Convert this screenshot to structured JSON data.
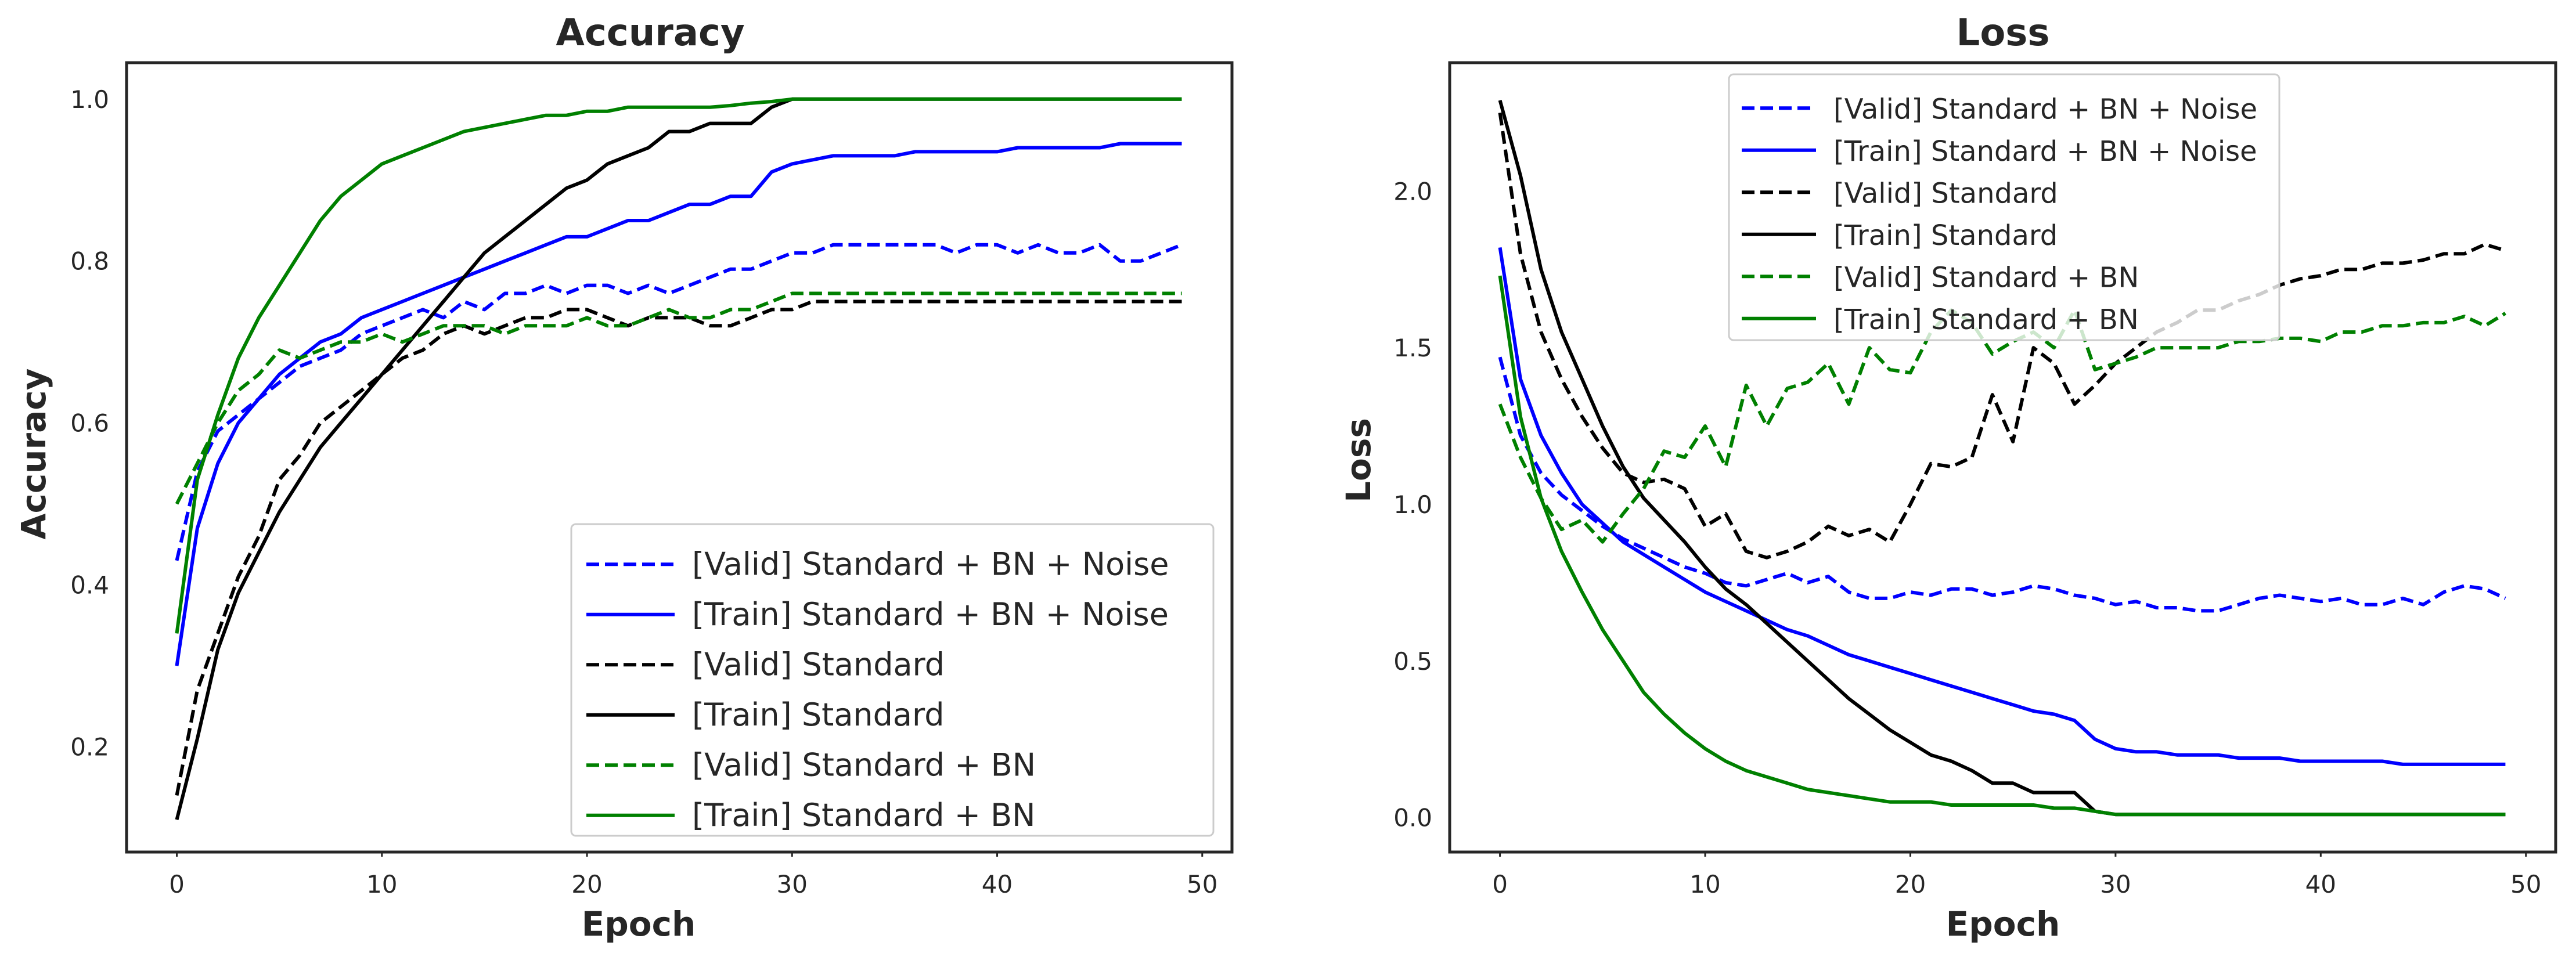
{
  "chart_data": [
    {
      "type": "line",
      "title": "Accuracy",
      "xlabel": "Epoch",
      "ylabel": "Accuracy",
      "xlim": [
        -2.45,
        51.45
      ],
      "ylim": [
        0.07,
        1.045
      ],
      "xticks": [
        0,
        10,
        20,
        30,
        40,
        50
      ],
      "yticks": [
        0.2,
        0.4,
        0.6,
        0.8,
        1.0
      ],
      "grid": false,
      "legend_position": "lower-right",
      "x": [
        0,
        1,
        2,
        3,
        4,
        5,
        6,
        7,
        8,
        9,
        10,
        11,
        12,
        13,
        14,
        15,
        16,
        17,
        18,
        19,
        20,
        21,
        22,
        23,
        24,
        25,
        26,
        27,
        28,
        29,
        30,
        31,
        32,
        33,
        34,
        35,
        36,
        37,
        38,
        39,
        40,
        41,
        42,
        43,
        44,
        45,
        46,
        47,
        48,
        49
      ],
      "series": [
        {
          "name": "[Valid] Standard + BN + Noise",
          "color": "#0000ff",
          "dash": "dashed",
          "values": [
            0.43,
            0.54,
            0.59,
            0.61,
            0.63,
            0.65,
            0.67,
            0.68,
            0.69,
            0.71,
            0.72,
            0.73,
            0.74,
            0.73,
            0.75,
            0.74,
            0.76,
            0.76,
            0.77,
            0.76,
            0.77,
            0.77,
            0.76,
            0.77,
            0.76,
            0.77,
            0.78,
            0.79,
            0.79,
            0.8,
            0.81,
            0.81,
            0.82,
            0.82,
            0.82,
            0.82,
            0.82,
            0.82,
            0.81,
            0.82,
            0.82,
            0.81,
            0.82,
            0.81,
            0.81,
            0.82,
            0.8,
            0.8,
            0.81,
            0.82
          ]
        },
        {
          "name": "[Train] Standard + BN + Noise",
          "color": "#0000ff",
          "dash": "solid",
          "values": [
            0.3,
            0.47,
            0.55,
            0.6,
            0.63,
            0.66,
            0.68,
            0.7,
            0.71,
            0.73,
            0.74,
            0.75,
            0.76,
            0.77,
            0.78,
            0.79,
            0.8,
            0.81,
            0.82,
            0.83,
            0.83,
            0.84,
            0.85,
            0.85,
            0.86,
            0.87,
            0.87,
            0.88,
            0.88,
            0.91,
            0.92,
            0.925,
            0.93,
            0.93,
            0.93,
            0.93,
            0.935,
            0.935,
            0.935,
            0.935,
            0.935,
            0.94,
            0.94,
            0.94,
            0.94,
            0.94,
            0.945,
            0.945,
            0.945,
            0.945
          ]
        },
        {
          "name": "[Valid] Standard",
          "color": "#000000",
          "dash": "dashed",
          "values": [
            0.14,
            0.27,
            0.34,
            0.41,
            0.46,
            0.53,
            0.56,
            0.6,
            0.62,
            0.64,
            0.66,
            0.68,
            0.69,
            0.71,
            0.72,
            0.71,
            0.72,
            0.73,
            0.73,
            0.74,
            0.74,
            0.73,
            0.72,
            0.73,
            0.73,
            0.73,
            0.72,
            0.72,
            0.73,
            0.74,
            0.74,
            0.75,
            0.75,
            0.75,
            0.75,
            0.75,
            0.75,
            0.75,
            0.75,
            0.75,
            0.75,
            0.75,
            0.75,
            0.75,
            0.75,
            0.75,
            0.75,
            0.75,
            0.75,
            0.75
          ]
        },
        {
          "name": "[Train] Standard",
          "color": "#000000",
          "dash": "solid",
          "values": [
            0.11,
            0.21,
            0.32,
            0.39,
            0.44,
            0.49,
            0.53,
            0.57,
            0.6,
            0.63,
            0.66,
            0.69,
            0.72,
            0.75,
            0.78,
            0.81,
            0.83,
            0.85,
            0.87,
            0.89,
            0.9,
            0.92,
            0.93,
            0.94,
            0.96,
            0.96,
            0.97,
            0.97,
            0.97,
            0.99,
            1.0,
            1.0,
            1.0,
            1.0,
            1.0,
            1.0,
            1.0,
            1.0,
            1.0,
            1.0,
            1.0,
            1.0,
            1.0,
            1.0,
            1.0,
            1.0,
            1.0,
            1.0,
            1.0,
            1.0
          ]
        },
        {
          "name": "[Valid] Standard + BN",
          "color": "#008000",
          "dash": "dashed",
          "values": [
            0.5,
            0.55,
            0.6,
            0.64,
            0.66,
            0.69,
            0.68,
            0.69,
            0.7,
            0.7,
            0.71,
            0.7,
            0.71,
            0.72,
            0.72,
            0.72,
            0.71,
            0.72,
            0.72,
            0.72,
            0.73,
            0.72,
            0.72,
            0.73,
            0.74,
            0.73,
            0.73,
            0.74,
            0.74,
            0.75,
            0.76,
            0.76,
            0.76,
            0.76,
            0.76,
            0.76,
            0.76,
            0.76,
            0.76,
            0.76,
            0.76,
            0.76,
            0.76,
            0.76,
            0.76,
            0.76,
            0.76,
            0.76,
            0.76,
            0.76
          ]
        },
        {
          "name": "[Train] Standard + BN",
          "color": "#008000",
          "dash": "solid",
          "values": [
            0.34,
            0.53,
            0.61,
            0.68,
            0.73,
            0.77,
            0.81,
            0.85,
            0.88,
            0.9,
            0.92,
            0.93,
            0.94,
            0.95,
            0.96,
            0.965,
            0.97,
            0.975,
            0.98,
            0.98,
            0.985,
            0.985,
            0.99,
            0.99,
            0.99,
            0.99,
            0.99,
            0.992,
            0.995,
            0.997,
            1.0,
            1.0,
            1.0,
            1.0,
            1.0,
            1.0,
            1.0,
            1.0,
            1.0,
            1.0,
            1.0,
            1.0,
            1.0,
            1.0,
            1.0,
            1.0,
            1.0,
            1.0,
            1.0,
            1.0
          ]
        }
      ]
    },
    {
      "type": "line",
      "title": "Loss",
      "xlabel": "Epoch",
      "ylabel": "Loss",
      "xlim": [
        -2.45,
        51.45
      ],
      "ylim": [
        -0.11,
        2.41
      ],
      "xticks": [
        0,
        10,
        20,
        30,
        40,
        50
      ],
      "yticks": [
        0.0,
        0.5,
        1.0,
        1.5,
        2.0
      ],
      "grid": false,
      "legend_position": "upper-center",
      "x": [
        0,
        1,
        2,
        3,
        4,
        5,
        6,
        7,
        8,
        9,
        10,
        11,
        12,
        13,
        14,
        15,
        16,
        17,
        18,
        19,
        20,
        21,
        22,
        23,
        24,
        25,
        26,
        27,
        28,
        29,
        30,
        31,
        32,
        33,
        34,
        35,
        36,
        37,
        38,
        39,
        40,
        41,
        42,
        43,
        44,
        45,
        46,
        47,
        48,
        49
      ],
      "series": [
        {
          "name": "[Valid] Standard + BN + Noise",
          "color": "#0000ff",
          "dash": "dashed",
          "values": [
            1.47,
            1.22,
            1.1,
            1.03,
            0.98,
            0.93,
            0.89,
            0.86,
            0.83,
            0.8,
            0.78,
            0.75,
            0.74,
            0.76,
            0.78,
            0.75,
            0.77,
            0.72,
            0.7,
            0.7,
            0.72,
            0.71,
            0.73,
            0.73,
            0.71,
            0.72,
            0.74,
            0.73,
            0.71,
            0.7,
            0.68,
            0.69,
            0.67,
            0.67,
            0.66,
            0.66,
            0.68,
            0.7,
            0.71,
            0.7,
            0.69,
            0.7,
            0.68,
            0.68,
            0.7,
            0.68,
            0.72,
            0.74,
            0.73,
            0.7
          ]
        },
        {
          "name": "[Train] Standard + BN + Noise",
          "color": "#0000ff",
          "dash": "solid",
          "values": [
            1.82,
            1.4,
            1.22,
            1.1,
            1.0,
            0.94,
            0.88,
            0.84,
            0.8,
            0.76,
            0.72,
            0.69,
            0.66,
            0.63,
            0.6,
            0.58,
            0.55,
            0.52,
            0.5,
            0.48,
            0.46,
            0.44,
            0.42,
            0.4,
            0.38,
            0.36,
            0.34,
            0.33,
            0.31,
            0.25,
            0.22,
            0.21,
            0.21,
            0.2,
            0.2,
            0.2,
            0.19,
            0.19,
            0.19,
            0.18,
            0.18,
            0.18,
            0.18,
            0.18,
            0.17,
            0.17,
            0.17,
            0.17,
            0.17,
            0.17
          ]
        },
        {
          "name": "[Valid] Standard",
          "color": "#000000",
          "dash": "dashed",
          "values": [
            2.25,
            1.8,
            1.55,
            1.4,
            1.28,
            1.18,
            1.1,
            1.07,
            1.08,
            1.05,
            0.93,
            0.97,
            0.85,
            0.83,
            0.85,
            0.88,
            0.93,
            0.9,
            0.92,
            0.88,
            1.0,
            1.13,
            1.12,
            1.15,
            1.35,
            1.2,
            1.5,
            1.45,
            1.32,
            1.38,
            1.45,
            1.5,
            1.55,
            1.58,
            1.62,
            1.62,
            1.65,
            1.67,
            1.7,
            1.72,
            1.73,
            1.75,
            1.75,
            1.77,
            1.77,
            1.78,
            1.8,
            1.8,
            1.83,
            1.81
          ]
        },
        {
          "name": "[Train] Standard",
          "color": "#000000",
          "dash": "solid",
          "values": [
            2.29,
            2.05,
            1.75,
            1.55,
            1.4,
            1.25,
            1.12,
            1.02,
            0.95,
            0.88,
            0.8,
            0.73,
            0.68,
            0.62,
            0.56,
            0.5,
            0.44,
            0.38,
            0.33,
            0.28,
            0.24,
            0.2,
            0.18,
            0.15,
            0.11,
            0.11,
            0.08,
            0.08,
            0.08,
            0.02,
            0.01,
            0.01,
            0.01,
            0.01,
            0.01,
            0.01,
            0.01,
            0.01,
            0.01,
            0.01,
            0.01,
            0.01,
            0.01,
            0.01,
            0.01,
            0.01,
            0.01,
            0.01,
            0.01,
            0.01
          ]
        },
        {
          "name": "[Valid] Standard + BN",
          "color": "#008000",
          "dash": "dashed",
          "values": [
            1.32,
            1.15,
            1.02,
            0.92,
            0.95,
            0.88,
            0.97,
            1.05,
            1.17,
            1.15,
            1.25,
            1.12,
            1.38,
            1.25,
            1.37,
            1.39,
            1.45,
            1.32,
            1.5,
            1.43,
            1.42,
            1.55,
            1.62,
            1.58,
            1.48,
            1.52,
            1.55,
            1.5,
            1.62,
            1.43,
            1.45,
            1.47,
            1.5,
            1.5,
            1.5,
            1.5,
            1.52,
            1.52,
            1.53,
            1.53,
            1.52,
            1.55,
            1.55,
            1.57,
            1.57,
            1.58,
            1.58,
            1.6,
            1.57,
            1.61
          ]
        },
        {
          "name": "[Train] Standard + BN",
          "color": "#008000",
          "dash": "solid",
          "values": [
            1.73,
            1.28,
            1.02,
            0.85,
            0.72,
            0.6,
            0.5,
            0.4,
            0.33,
            0.27,
            0.22,
            0.18,
            0.15,
            0.13,
            0.11,
            0.09,
            0.08,
            0.07,
            0.06,
            0.05,
            0.05,
            0.05,
            0.04,
            0.04,
            0.04,
            0.04,
            0.04,
            0.03,
            0.03,
            0.02,
            0.01,
            0.01,
            0.01,
            0.01,
            0.01,
            0.01,
            0.01,
            0.01,
            0.01,
            0.01,
            0.01,
            0.01,
            0.01,
            0.01,
            0.01,
            0.01,
            0.01,
            0.01,
            0.01,
            0.01
          ]
        }
      ]
    }
  ]
}
